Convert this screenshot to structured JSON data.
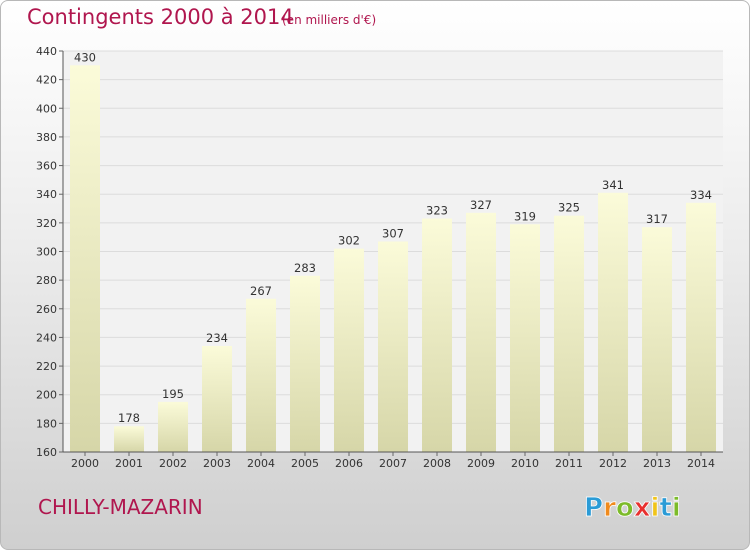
{
  "title": "Contingents 2000 à 2014",
  "subtitle": "(en milliers d'€)",
  "commune": "CHILLY-MAZARIN",
  "logo": {
    "letters": [
      "P",
      "r",
      "o",
      "x",
      "i",
      "t",
      "i"
    ],
    "colors": [
      "#2a9bd6",
      "#f08a1c",
      "#7cbb2a",
      "#e8302f",
      "#f0c419",
      "#2a9bd6",
      "#7cbb2a"
    ]
  },
  "colors": {
    "title": "#b0164e",
    "bar_top": "#fbfbd9",
    "bar_bottom": "#d6d6a8",
    "grid": "#dcdcdc"
  },
  "chart_data": {
    "type": "bar",
    "categories": [
      "2000",
      "2001",
      "2002",
      "2003",
      "2004",
      "2005",
      "2006",
      "2007",
      "2008",
      "2009",
      "2010",
      "2011",
      "2012",
      "2013",
      "2014"
    ],
    "values": [
      430,
      178,
      195,
      234,
      267,
      283,
      302,
      307,
      323,
      327,
      319,
      325,
      341,
      317,
      334
    ],
    "ylim": [
      160,
      440
    ],
    "yticks": [
      160,
      180,
      200,
      220,
      240,
      260,
      280,
      300,
      320,
      340,
      360,
      380,
      400,
      420,
      440
    ],
    "grid": true,
    "legend": "none"
  }
}
